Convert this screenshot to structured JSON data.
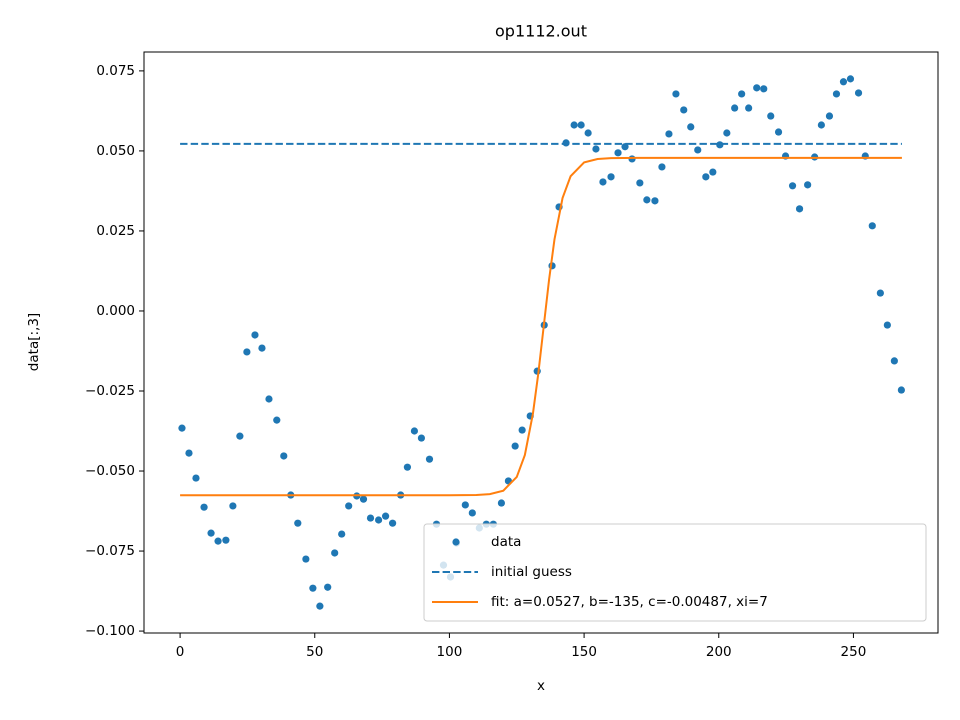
{
  "chart_data": {
    "type": "scatter",
    "title": "op1112.out",
    "x_label": "x",
    "y_label": "data[:,3]",
    "xlim": [
      -13.4,
      281.4
    ],
    "ylim": [
      -0.1006,
      0.0809
    ],
    "xticks": [
      0,
      50,
      100,
      150,
      200,
      250
    ],
    "yticks": [
      {
        "value": -0.1,
        "label": "−0.100"
      },
      {
        "value": -0.075,
        "label": "−0.075"
      },
      {
        "value": -0.05,
        "label": "−0.050"
      },
      {
        "value": -0.025,
        "label": "−0.025"
      },
      {
        "value": 0,
        "label": "0.000"
      },
      0.025,
      {
        "value": 0.05,
        "label": "0.050"
      },
      0.075
    ],
    "legend": "lower right",
    "series": [
      {
        "name": "data",
        "type": "scatter",
        "color": "#1f77b4",
        "x": [
          0.7,
          3.3,
          5.9,
          8.9,
          11.5,
          14.1,
          17.0,
          19.6,
          22.2,
          24.8,
          27.8,
          30.4,
          33.0,
          35.9,
          38.5,
          41.1,
          43.7,
          46.7,
          49.3,
          51.9,
          54.8,
          57.4,
          60.0,
          62.6,
          65.6,
          68.1,
          70.7,
          73.7,
          76.3,
          78.9,
          81.9,
          84.4,
          87.0,
          89.6,
          92.6,
          95.2,
          97.8,
          100.4,
          102.6,
          105.9,
          108.5,
          111.1,
          113.7,
          116.3,
          119.3,
          121.9,
          124.4,
          127.0,
          130.0,
          132.6,
          135.2,
          138.1,
          140.7,
          143.3,
          146.3,
          148.9,
          151.5,
          154.4,
          157.0,
          160.0,
          162.6,
          165.2,
          167.8,
          170.7,
          173.3,
          176.3,
          178.9,
          181.5,
          184.1,
          187.0,
          189.6,
          192.2,
          195.2,
          197.8,
          200.4,
          203.0,
          205.9,
          208.5,
          211.1,
          214.1,
          216.7,
          219.3,
          222.2,
          224.8,
          227.4,
          230.0,
          233.0,
          235.6,
          238.1,
          241.1,
          243.7,
          246.3,
          248.9,
          251.9,
          254.4,
          257.0,
          260.0,
          262.6,
          265.2,
          267.8
        ],
        "values": [
          -0.0366,
          -0.0444,
          -0.0522,
          -0.0613,
          -0.0694,
          -0.0719,
          -0.0716,
          -0.0609,
          -0.0391,
          -0.0128,
          -0.0075,
          -0.0116,
          -0.0275,
          -0.0341,
          -0.0453,
          -0.0575,
          -0.0663,
          -0.0775,
          -0.0866,
          -0.0922,
          -0.0863,
          -0.0756,
          -0.0697,
          -0.0609,
          -0.0578,
          -0.0588,
          -0.0647,
          -0.0653,
          -0.0641,
          -0.0663,
          -0.0575,
          -0.0488,
          -0.0375,
          -0.0397,
          -0.0463,
          -0.0666,
          -0.0794,
          -0.0831,
          -0.0725,
          -0.0606,
          -0.0631,
          -0.0678,
          -0.0666,
          -0.0666,
          -0.06,
          -0.0531,
          -0.0422,
          -0.0372,
          -0.0328,
          -0.0188,
          -0.0044,
          0.0141,
          0.0325,
          0.0525,
          0.0581,
          0.0581,
          0.0556,
          0.0506,
          0.0403,
          0.0419,
          0.0494,
          0.0513,
          0.0475,
          0.04,
          0.0347,
          0.0344,
          0.045,
          0.0553,
          0.0678,
          0.0628,
          0.0575,
          0.0503,
          0.0419,
          0.0434,
          0.0519,
          0.0556,
          0.0634,
          0.0678,
          0.0634,
          0.0697,
          0.0694,
          0.0609,
          0.0559,
          0.0484,
          0.0391,
          0.0319,
          0.0394,
          0.0481,
          0.0581,
          0.0609,
          0.0678,
          0.0716,
          0.0725,
          0.0681,
          0.0484,
          0.0266,
          0.0056,
          -0.0044,
          -0.0156,
          -0.0247
        ]
      },
      {
        "name": "initial guess",
        "type": "line",
        "linestyle": "dashed",
        "color": "#1f77b4",
        "x": [
          0,
          268
        ],
        "values": [
          0.0522,
          0.0522
        ]
      },
      {
        "name": "fit: a=0.0527, b=-135, c=-0.00487, xi=7",
        "type": "line",
        "linestyle": "solid",
        "color": "#ff7f0e",
        "x": [
          0,
          100,
          110,
          115,
          120,
          125,
          128,
          131,
          133,
          135,
          137,
          139,
          142,
          145,
          150,
          155,
          160,
          170,
          268
        ],
        "values": [
          -0.05757,
          -0.05757,
          -0.05749,
          -0.05722,
          -0.05614,
          -0.05185,
          -0.04501,
          -0.03208,
          -0.01953,
          -0.00487,
          0.00979,
          0.02234,
          0.03527,
          0.04211,
          0.0464,
          0.04748,
          0.04775,
          0.04783,
          0.04783
        ]
      }
    ]
  }
}
